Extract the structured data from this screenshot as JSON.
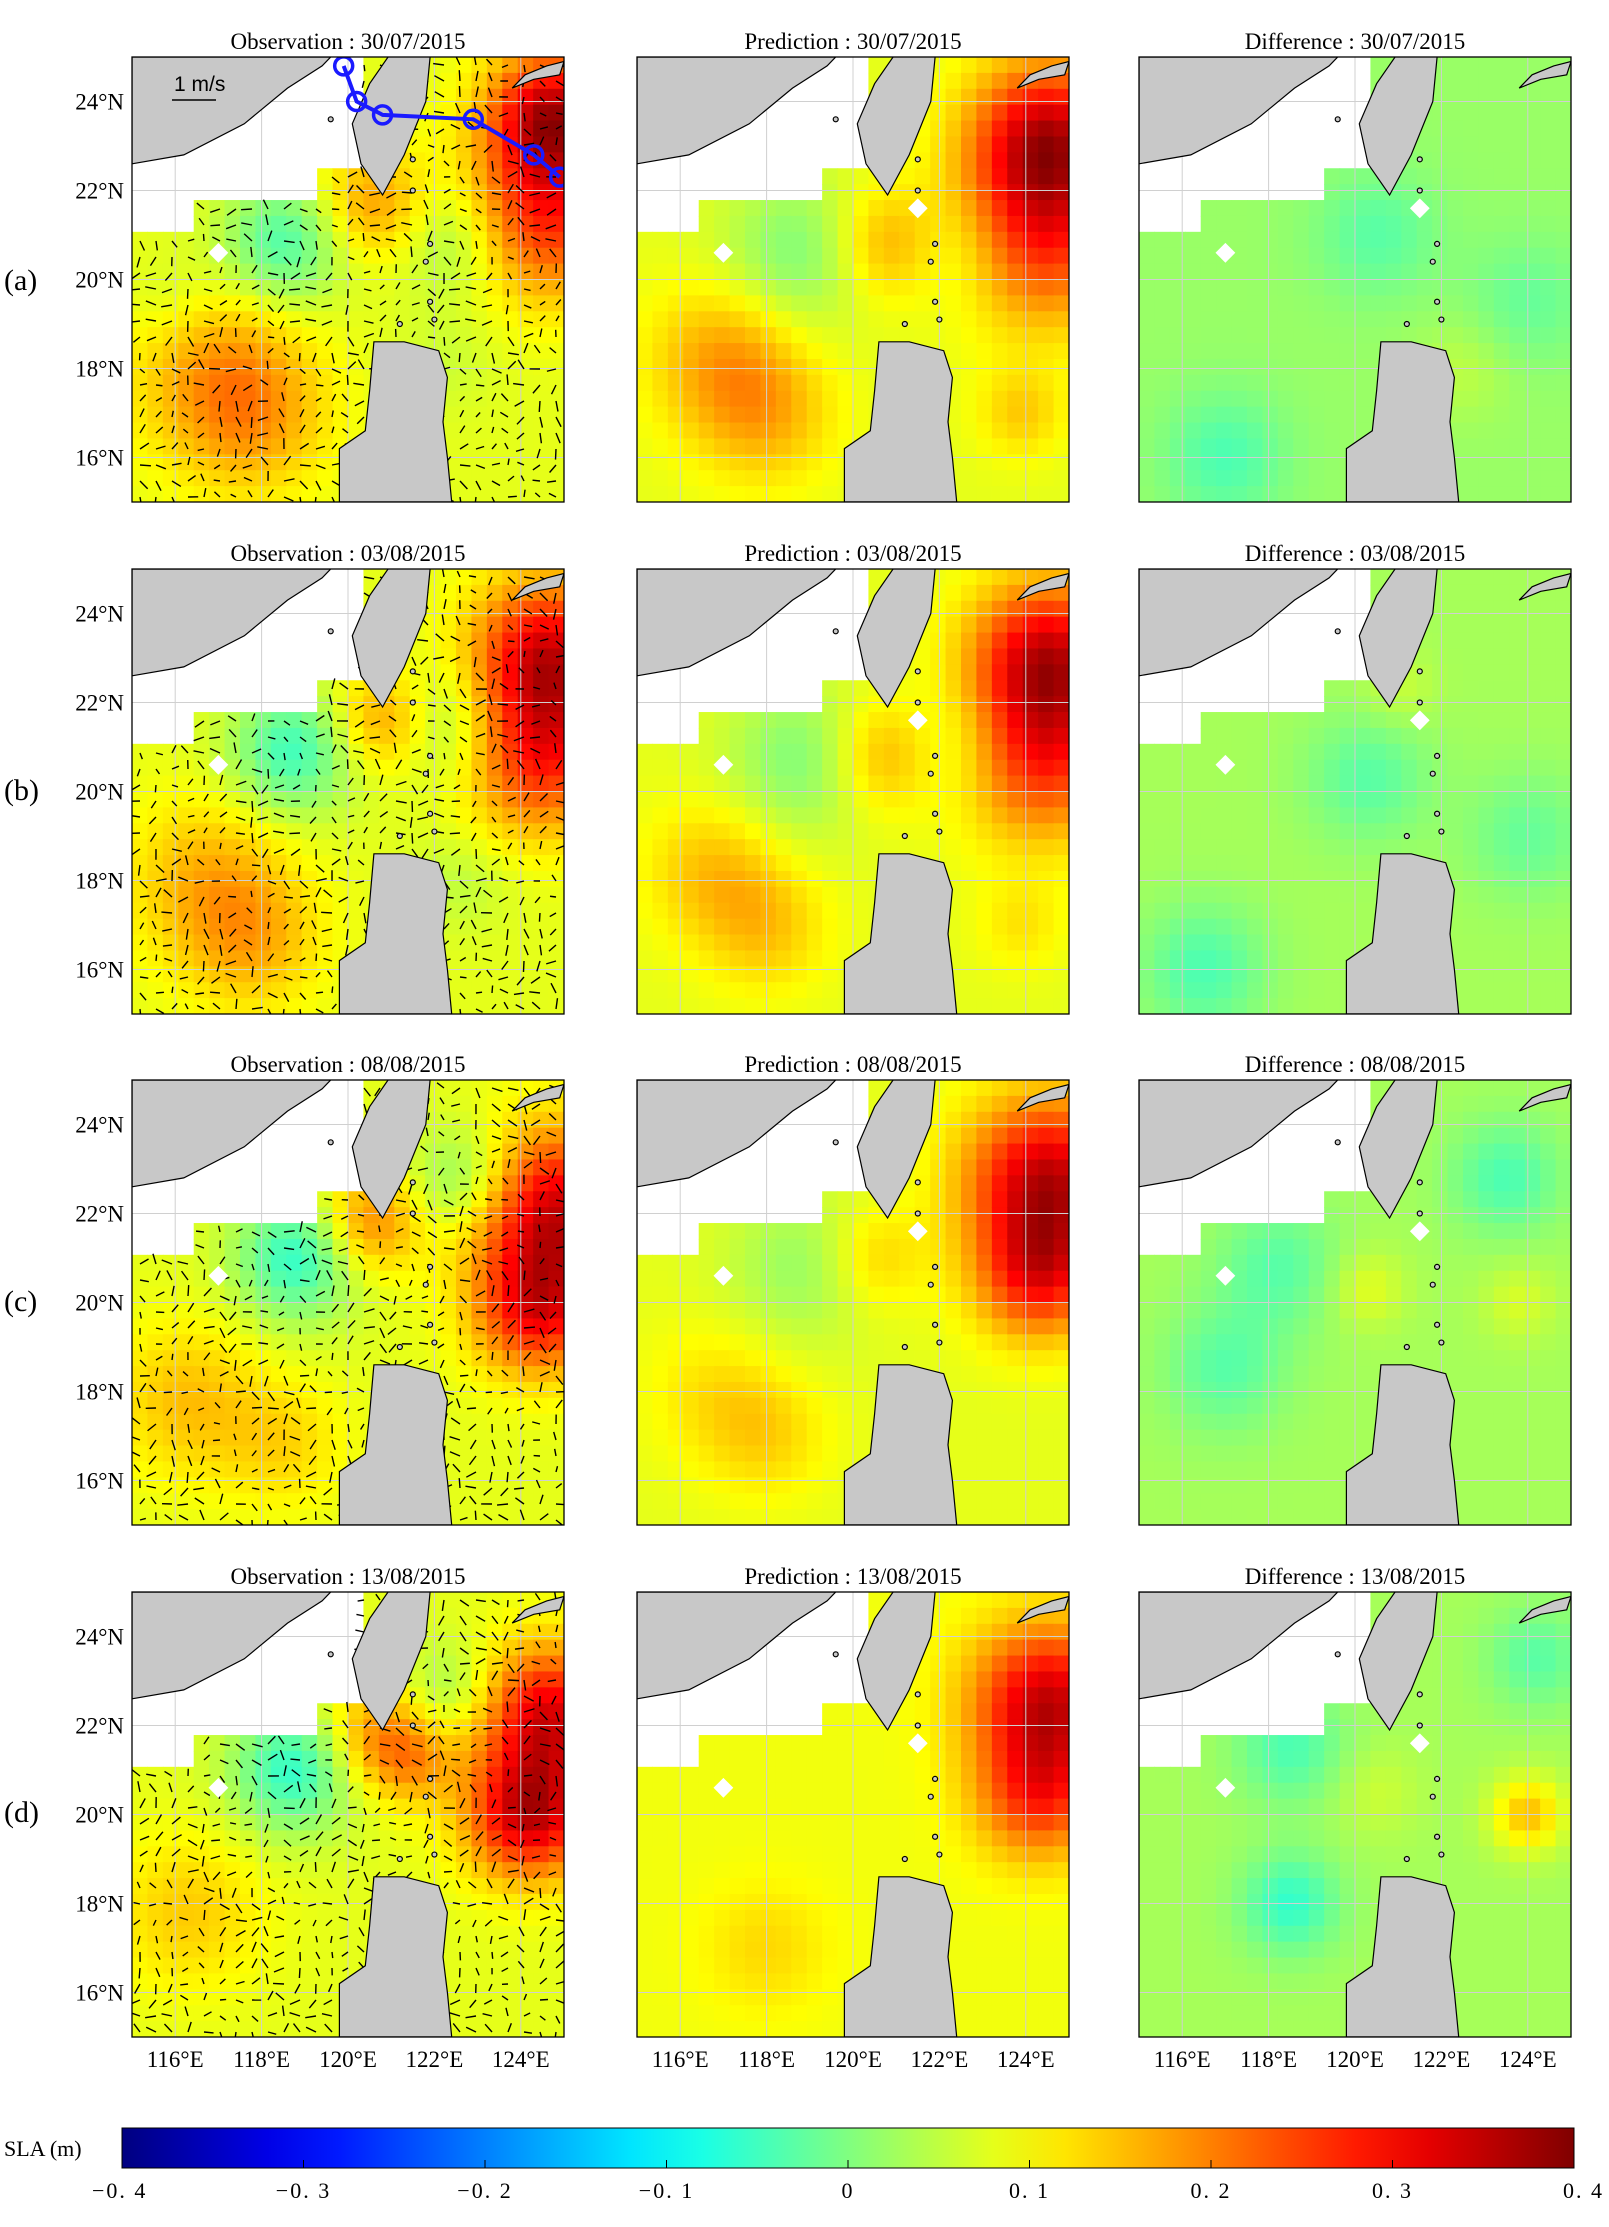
{
  "figure": {
    "row_labels": [
      "(a)",
      "(b)",
      "(c)",
      "(d)"
    ],
    "column_prefixes": [
      "Observation : ",
      "Prediction : ",
      "Difference : "
    ],
    "dates": [
      "30/07/2015",
      "03/08/2015",
      "08/08/2015",
      "13/08/2015"
    ],
    "land_color": "#c8c8c8",
    "ocean_background": "#ffffff"
  },
  "chart_data": {
    "type": "heatmap",
    "title": "",
    "xlabel": "",
    "ylabel": "",
    "xlim": [
      115,
      125
    ],
    "ylim": [
      15,
      25
    ],
    "x_ticks": [
      116,
      118,
      120,
      122,
      124
    ],
    "x_tick_labels": [
      "116°E",
      "118°E",
      "120°E",
      "122°E",
      "124°E"
    ],
    "y_ticks": [
      16,
      18,
      20,
      22,
      24
    ],
    "y_tick_labels": [
      "16°N",
      "18°N",
      "20°N",
      "22°N",
      "24°N"
    ],
    "grid": true,
    "colorbar": {
      "label": "SLA (m)",
      "range": [
        -0.4,
        0.4
      ],
      "ticks": [
        -0.4,
        -0.3,
        -0.2,
        -0.1,
        0,
        0.1,
        0.2,
        0.3,
        0.4
      ],
      "tick_labels": [
        "−0. 4",
        "−0. 3",
        "−0. 2",
        "−0. 1",
        "0",
        "0. 1",
        "0. 2",
        "0. 3",
        "0. 4"
      ],
      "colormap": "jet"
    },
    "reference_vector_label": "1 m/s",
    "typhoon_track": {
      "color": "#1a1aff",
      "points": [
        [
          124.9,
          22.3
        ],
        [
          124.3,
          22.8
        ],
        [
          122.9,
          23.6
        ],
        [
          120.8,
          23.7
        ],
        [
          120.2,
          24.0
        ],
        [
          119.9,
          24.8
        ]
      ]
    },
    "panels": [
      {
        "row": 0,
        "col": 0,
        "kind": "observation",
        "date": "30/07/2015",
        "base": 0.08,
        "vectors": true,
        "features": [
          {
            "lon": 124.7,
            "lat": 23.7,
            "sla": 0.34,
            "r": 1.0
          },
          {
            "lon": 124.5,
            "lat": 21.5,
            "sla": 0.28,
            "r": 1.3
          },
          {
            "lon": 117.0,
            "lat": 18.0,
            "sla": 0.17,
            "r": 1.4
          },
          {
            "lon": 117.8,
            "lat": 16.8,
            "sla": 0.15,
            "r": 1.2
          },
          {
            "lon": 120.6,
            "lat": 21.7,
            "sla": 0.18,
            "r": 0.9
          },
          {
            "lon": 118.5,
            "lat": 20.8,
            "sla": -0.04,
            "r": 1.0
          },
          {
            "lon": 122.6,
            "lat": 21.0,
            "sla": 0.0,
            "r": 1.0
          },
          {
            "lon": 122.3,
            "lat": 18.2,
            "sla": 0.06,
            "r": 0.8
          },
          {
            "lon": 116.0,
            "lat": 19.5,
            "sla": 0.05,
            "r": 0.8
          }
        ]
      },
      {
        "row": 0,
        "col": 1,
        "kind": "prediction",
        "date": "30/07/2015",
        "base": 0.08,
        "vectors": false,
        "features": [
          {
            "lon": 124.5,
            "lat": 23.2,
            "sla": 0.33,
            "r": 1.2
          },
          {
            "lon": 124.3,
            "lat": 21.0,
            "sla": 0.27,
            "r": 1.4
          },
          {
            "lon": 120.8,
            "lat": 20.8,
            "sla": 0.17,
            "r": 0.9
          },
          {
            "lon": 117.0,
            "lat": 18.2,
            "sla": 0.17,
            "r": 1.2
          },
          {
            "lon": 118.0,
            "lat": 16.9,
            "sla": 0.15,
            "r": 1.1
          },
          {
            "lon": 118.7,
            "lat": 20.6,
            "sla": 0.0,
            "r": 1.2
          },
          {
            "lon": 122.5,
            "lat": 20.7,
            "sla": 0.02,
            "r": 1.0
          },
          {
            "lon": 123.9,
            "lat": 17.0,
            "sla": 0.14,
            "r": 0.7
          }
        ]
      },
      {
        "row": 0,
        "col": 2,
        "kind": "difference",
        "date": "30/07/2015",
        "base": 0.02,
        "vectors": false,
        "features": [
          {
            "lon": 117.0,
            "lat": 16.0,
            "sla": -0.04,
            "r": 1.0
          },
          {
            "lon": 120.5,
            "lat": 21.0,
            "sla": -0.03,
            "r": 1.0
          },
          {
            "lon": 124.0,
            "lat": 19.5,
            "sla": -0.02,
            "r": 1.0
          },
          {
            "lon": 122.5,
            "lat": 18.0,
            "sla": 0.05,
            "r": 0.8
          }
        ]
      },
      {
        "row": 1,
        "col": 0,
        "kind": "observation",
        "date": "03/08/2015",
        "base": 0.08,
        "vectors": true,
        "features": [
          {
            "lon": 124.6,
            "lat": 23.0,
            "sla": 0.33,
            "r": 1.2
          },
          {
            "lon": 124.4,
            "lat": 20.8,
            "sla": 0.27,
            "r": 1.2
          },
          {
            "lon": 116.8,
            "lat": 18.0,
            "sla": 0.16,
            "r": 1.3
          },
          {
            "lon": 117.8,
            "lat": 16.6,
            "sla": 0.15,
            "r": 1.1
          },
          {
            "lon": 120.8,
            "lat": 21.6,
            "sla": 0.18,
            "r": 0.8
          },
          {
            "lon": 118.7,
            "lat": 20.9,
            "sla": -0.05,
            "r": 1.0
          },
          {
            "lon": 122.5,
            "lat": 21.5,
            "sla": 0.0,
            "r": 1.0
          },
          {
            "lon": 122.6,
            "lat": 18.0,
            "sla": 0.05,
            "r": 0.8
          }
        ]
      },
      {
        "row": 1,
        "col": 1,
        "kind": "prediction",
        "date": "03/08/2015",
        "base": 0.08,
        "vectors": false,
        "features": [
          {
            "lon": 124.5,
            "lat": 23.0,
            "sla": 0.33,
            "r": 1.2
          },
          {
            "lon": 124.3,
            "lat": 20.8,
            "sla": 0.27,
            "r": 1.3
          },
          {
            "lon": 120.7,
            "lat": 20.8,
            "sla": 0.17,
            "r": 0.9
          },
          {
            "lon": 116.8,
            "lat": 18.2,
            "sla": 0.15,
            "r": 1.1
          },
          {
            "lon": 118.0,
            "lat": 16.9,
            "sla": 0.14,
            "r": 1.0
          },
          {
            "lon": 118.8,
            "lat": 20.7,
            "sla": 0.0,
            "r": 1.2
          },
          {
            "lon": 122.5,
            "lat": 21.0,
            "sla": 0.02,
            "r": 1.0
          },
          {
            "lon": 123.9,
            "lat": 17.0,
            "sla": 0.12,
            "r": 0.7
          }
        ]
      },
      {
        "row": 1,
        "col": 2,
        "kind": "difference",
        "date": "03/08/2015",
        "base": 0.03,
        "vectors": false,
        "features": [
          {
            "lon": 116.5,
            "lat": 16.0,
            "sla": -0.04,
            "r": 1.0
          },
          {
            "lon": 120.3,
            "lat": 20.3,
            "sla": -0.03,
            "r": 1.0
          },
          {
            "lon": 124.0,
            "lat": 19.0,
            "sla": -0.02,
            "r": 1.0
          },
          {
            "lon": 121.0,
            "lat": 22.3,
            "sla": 0.06,
            "r": 0.6
          }
        ]
      },
      {
        "row": 2,
        "col": 0,
        "kind": "observation",
        "date": "08/08/2015",
        "base": 0.08,
        "vectors": true,
        "features": [
          {
            "lon": 124.7,
            "lat": 22.0,
            "sla": 0.34,
            "r": 1.3
          },
          {
            "lon": 124.4,
            "lat": 19.8,
            "sla": 0.28,
            "r": 1.0
          },
          {
            "lon": 116.3,
            "lat": 17.8,
            "sla": 0.15,
            "r": 1.2
          },
          {
            "lon": 120.5,
            "lat": 21.8,
            "sla": 0.2,
            "r": 0.8
          },
          {
            "lon": 118.8,
            "lat": 21.0,
            "sla": -0.06,
            "r": 1.0
          },
          {
            "lon": 122.8,
            "lat": 22.7,
            "sla": -0.02,
            "r": 0.9
          },
          {
            "lon": 118.5,
            "lat": 16.8,
            "sla": 0.13,
            "r": 1.0
          }
        ]
      },
      {
        "row": 2,
        "col": 1,
        "kind": "prediction",
        "date": "08/08/2015",
        "base": 0.08,
        "vectors": false,
        "features": [
          {
            "lon": 124.5,
            "lat": 22.7,
            "sla": 0.35,
            "r": 1.3
          },
          {
            "lon": 124.3,
            "lat": 20.6,
            "sla": 0.27,
            "r": 1.0
          },
          {
            "lon": 120.5,
            "lat": 21.0,
            "sla": 0.14,
            "r": 0.8
          },
          {
            "lon": 116.8,
            "lat": 18.0,
            "sla": 0.12,
            "r": 1.1
          },
          {
            "lon": 118.0,
            "lat": 17.0,
            "sla": 0.13,
            "r": 1.0
          },
          {
            "lon": 118.8,
            "lat": 20.8,
            "sla": 0.02,
            "r": 1.2
          }
        ]
      },
      {
        "row": 2,
        "col": 2,
        "kind": "difference",
        "date": "08/08/2015",
        "base": 0.03,
        "vectors": false,
        "features": [
          {
            "lon": 123.5,
            "lat": 22.8,
            "sla": -0.04,
            "r": 0.9
          },
          {
            "lon": 118.2,
            "lat": 20.8,
            "sla": -0.03,
            "r": 1.0
          },
          {
            "lon": 117.0,
            "lat": 18.5,
            "sla": -0.03,
            "r": 1.0
          },
          {
            "lon": 120.3,
            "lat": 20.3,
            "sla": 0.08,
            "r": 0.6
          },
          {
            "lon": 123.8,
            "lat": 20.0,
            "sla": 0.07,
            "r": 0.6
          }
        ]
      },
      {
        "row": 3,
        "col": 0,
        "kind": "observation",
        "date": "13/08/2015",
        "base": 0.08,
        "vectors": true,
        "features": [
          {
            "lon": 124.6,
            "lat": 22.2,
            "sla": 0.32,
            "r": 1.1
          },
          {
            "lon": 124.2,
            "lat": 20.0,
            "sla": 0.34,
            "r": 1.0
          },
          {
            "lon": 116.3,
            "lat": 17.8,
            "sla": 0.14,
            "r": 1.2
          },
          {
            "lon": 120.6,
            "lat": 21.8,
            "sla": 0.18,
            "r": 0.8
          },
          {
            "lon": 118.7,
            "lat": 21.0,
            "sla": -0.06,
            "r": 1.0
          },
          {
            "lon": 121.5,
            "lat": 21.2,
            "sla": 0.17,
            "r": 0.7
          },
          {
            "lon": 122.5,
            "lat": 22.8,
            "sla": 0.02,
            "r": 0.8
          }
        ]
      },
      {
        "row": 3,
        "col": 1,
        "kind": "prediction",
        "date": "13/08/2015",
        "base": 0.09,
        "vectors": false,
        "features": [
          {
            "lon": 124.5,
            "lat": 22.5,
            "sla": 0.34,
            "r": 1.2
          },
          {
            "lon": 124.3,
            "lat": 20.4,
            "sla": 0.25,
            "r": 1.0
          },
          {
            "lon": 118.0,
            "lat": 17.0,
            "sla": 0.13,
            "r": 1.0
          }
        ]
      },
      {
        "row": 3,
        "col": 2,
        "kind": "difference",
        "date": "13/08/2015",
        "base": 0.03,
        "vectors": false,
        "features": [
          {
            "lon": 124.0,
            "lat": 20.0,
            "sla": 0.15,
            "r": 0.6
          },
          {
            "lon": 118.5,
            "lat": 18.0,
            "sla": -0.06,
            "r": 0.8
          },
          {
            "lon": 118.5,
            "lat": 21.5,
            "sla": -0.04,
            "r": 0.9
          },
          {
            "lon": 124.2,
            "lat": 23.5,
            "sla": -0.03,
            "r": 0.8
          },
          {
            "lon": 120.5,
            "lat": 20.5,
            "sla": 0.06,
            "r": 0.7
          }
        ]
      }
    ]
  }
}
